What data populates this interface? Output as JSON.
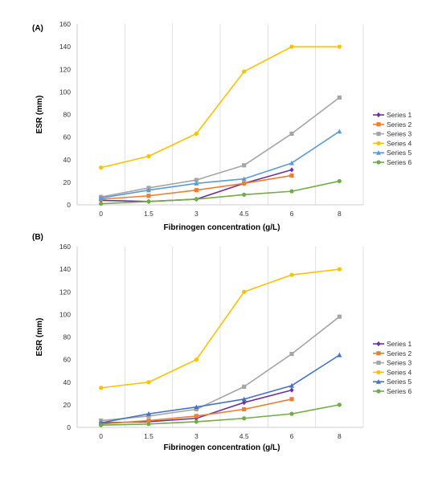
{
  "chart_data": [
    {
      "type": "line",
      "panel_label": "(A)",
      "title": "",
      "xlabel": "Fibrinogen concentration (g/L)",
      "ylabel": "ESR (mm)",
      "categories": [
        "0",
        "1.5",
        "3",
        "4.5",
        "6",
        "8"
      ],
      "ylim": [
        0,
        160
      ],
      "yticks": [
        0,
        20,
        40,
        60,
        80,
        100,
        120,
        140,
        160
      ],
      "grid": "vertical",
      "legend": "right",
      "series": [
        {
          "name": "Series 1",
          "color": "#7030a0",
          "marker": "diamond",
          "values": [
            4,
            3,
            5,
            19,
            31,
            null
          ]
        },
        {
          "name": "Series 2",
          "color": "#ed7d31",
          "marker": "square",
          "values": [
            5,
            8,
            13,
            19,
            26,
            null
          ]
        },
        {
          "name": "Series 3",
          "color": "#a5a5a5",
          "marker": "square",
          "values": [
            7,
            15,
            22,
            35,
            63,
            95
          ]
        },
        {
          "name": "Series 4",
          "color": "#ffc000",
          "marker": "circle",
          "values": [
            33,
            43,
            63,
            118,
            140,
            140
          ]
        },
        {
          "name": "Series 5",
          "color": "#5b9bd5",
          "marker": "triangle",
          "values": [
            6,
            13,
            19,
            23,
            37,
            65
          ]
        },
        {
          "name": "Series 6",
          "color": "#70ad47",
          "marker": "circle",
          "values": [
            1,
            3,
            5,
            9,
            12,
            21
          ]
        }
      ]
    },
    {
      "type": "line",
      "panel_label": "(B)",
      "title": "",
      "xlabel": "Fibrinogen concentration (g/L)",
      "ylabel": "ESR (mm)",
      "categories": [
        "0",
        "1.5",
        "3",
        "4.5",
        "6",
        "8"
      ],
      "ylim": [
        0,
        160
      ],
      "yticks": [
        0,
        20,
        40,
        60,
        80,
        100,
        120,
        140,
        160
      ],
      "grid": "vertical",
      "legend": "right",
      "series": [
        {
          "name": "Series 1",
          "color": "#7030a0",
          "marker": "diamond",
          "values": [
            4,
            5,
            8,
            22,
            33,
            null
          ]
        },
        {
          "name": "Series 2",
          "color": "#ed7d31",
          "marker": "square",
          "values": [
            3,
            6,
            10,
            16,
            25,
            null
          ]
        },
        {
          "name": "Series 3",
          "color": "#a5a5a5",
          "marker": "square",
          "values": [
            6,
            10,
            16,
            36,
            65,
            98
          ]
        },
        {
          "name": "Series 4",
          "color": "#ffc000",
          "marker": "circle",
          "values": [
            35,
            40,
            60,
            120,
            135,
            140
          ]
        },
        {
          "name": "Series 5",
          "color": "#4472c4",
          "marker": "triangle",
          "values": [
            4,
            12,
            18,
            25,
            37,
            64
          ]
        },
        {
          "name": "Series 6",
          "color": "#70ad47",
          "marker": "circle",
          "values": [
            2,
            3,
            5,
            8,
            12,
            20
          ]
        }
      ]
    }
  ]
}
